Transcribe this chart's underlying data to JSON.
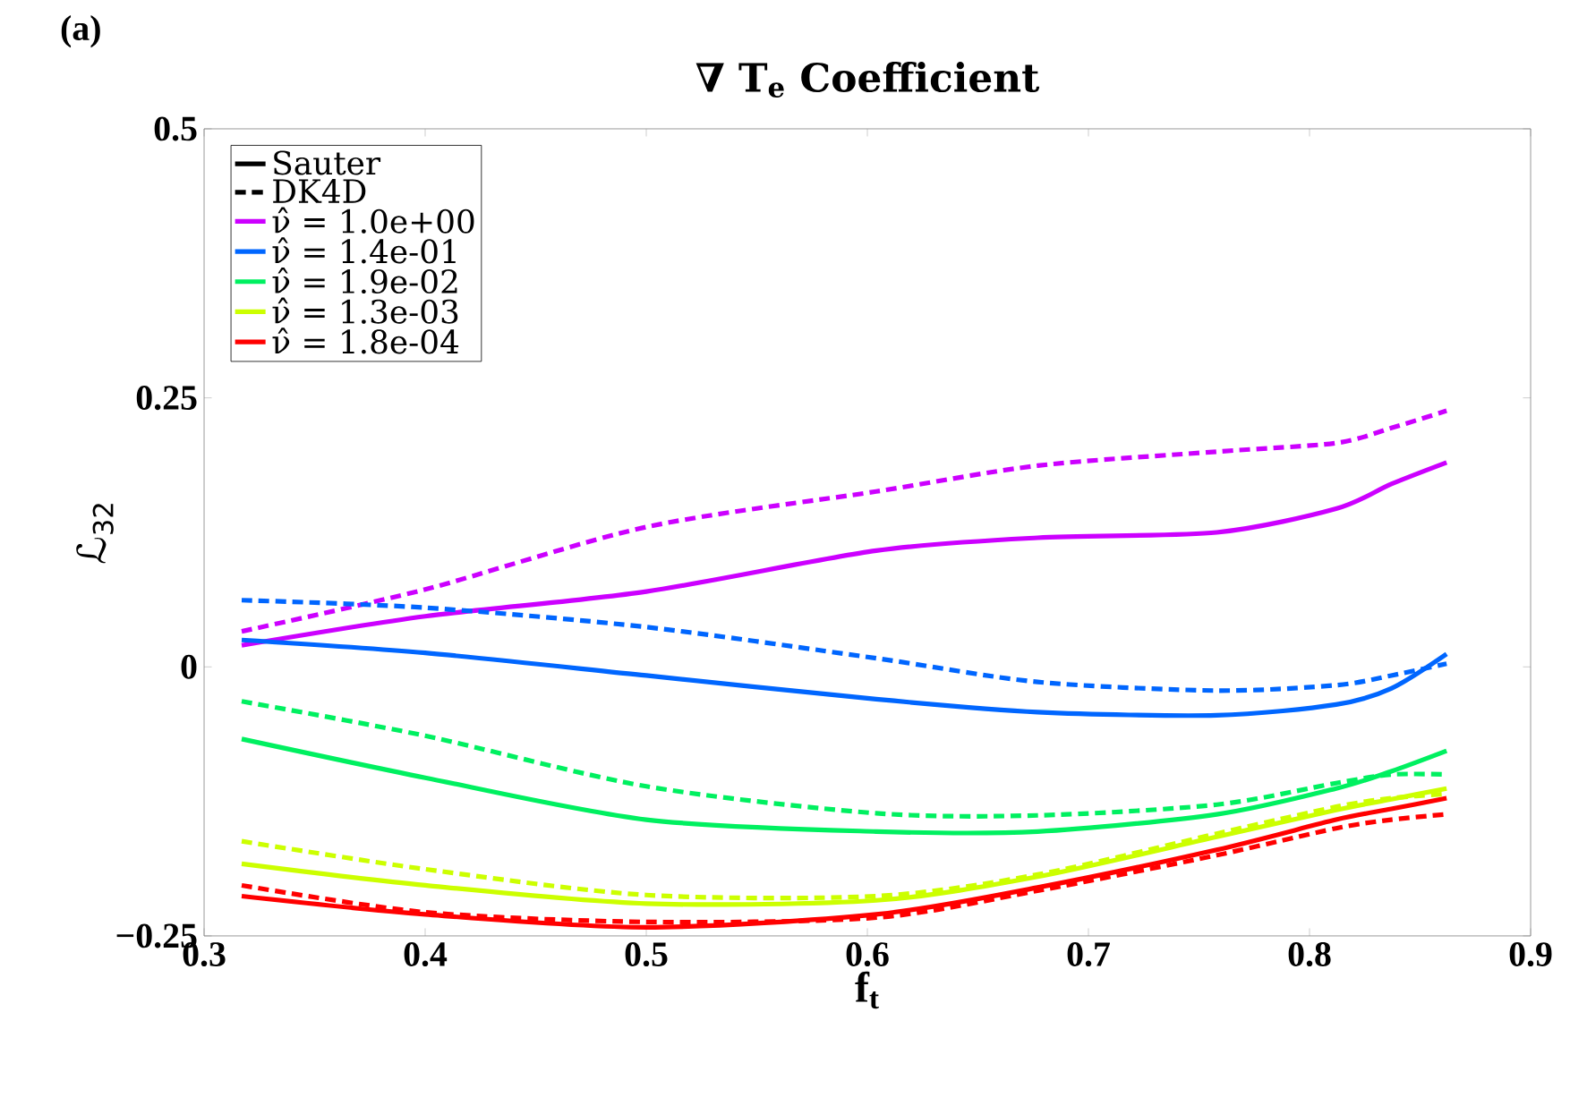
{
  "chart_data": {
    "type": "line",
    "title": "∇ T$_{e}$ Coefficient",
    "xlabel": "f$_{t}$",
    "ylabel": "ℒ$_{32}$",
    "annotations": [
      "(a)"
    ],
    "x": [
      0.317,
      0.4,
      0.5,
      0.604,
      0.677,
      0.758,
      0.812,
      0.837,
      0.862
    ],
    "xlim": [
      0.3,
      0.9
    ],
    "xticks": [
      0.3,
      0.4,
      0.5,
      0.6,
      0.7,
      0.8,
      0.9
    ],
    "ylim": [
      -0.25,
      0.5
    ],
    "yticks": [
      {
        "value": -0.25,
        "label": "−0.25"
      },
      0,
      0.25,
      0.5
    ],
    "legend": "top left",
    "grid": false,
    "marker": "none",
    "series": [
      {
        "name": "Sauter",
        "color": "#000000",
        "line_style": "solid",
        "values": [
          null,
          null,
          null,
          null,
          null,
          null,
          null,
          null,
          null
        ]
      },
      {
        "name": "DK4D",
        "color": "#000000",
        "line_style": "dashed",
        "values": [
          null,
          null,
          null,
          null,
          null,
          null,
          null,
          null,
          null
        ]
      },
      {
        "name": "ν̂ = 1.0e+00",
        "color": "#cc00ff",
        "line_style": "solid",
        "values": [
          0.02,
          0.047,
          0.07,
          0.108,
          0.12,
          0.125,
          0.147,
          0.17,
          0.19
        ]
      },
      {
        "name": "ν̂ = 1.4e-01",
        "color": "#0066ff",
        "line_style": "solid",
        "values": [
          0.025,
          0.013,
          -0.008,
          -0.03,
          -0.042,
          -0.045,
          -0.035,
          -0.02,
          0.012
        ]
      },
      {
        "name": "ν̂ = 1.9e-02",
        "color": "#00f060",
        "line_style": "solid",
        "values": [
          -0.067,
          -0.103,
          -0.142,
          -0.153,
          -0.153,
          -0.137,
          -0.113,
          -0.097,
          -0.078
        ]
      },
      {
        "name": "ν̂ = 1.3e-03",
        "color": "#ccff00",
        "line_style": "solid",
        "values": [
          -0.183,
          -0.203,
          -0.22,
          -0.217,
          -0.195,
          -0.158,
          -0.133,
          -0.123,
          -0.113
        ]
      },
      {
        "name": "ν̂ = 1.8e-04",
        "color": "#ff0000",
        "line_style": "solid",
        "values": [
          -0.213,
          -0.23,
          -0.242,
          -0.23,
          -0.205,
          -0.17,
          -0.142,
          -0.132,
          -0.122
        ]
      },
      {
        "color": "#cc00ff",
        "line_style": "dashed",
        "values": [
          0.033,
          0.072,
          0.13,
          0.163,
          0.187,
          0.2,
          0.208,
          0.222,
          0.238
        ]
      },
      {
        "color": "#0066ff",
        "line_style": "dashed",
        "values": [
          0.062,
          0.055,
          0.037,
          0.008,
          -0.014,
          -0.022,
          -0.017,
          -0.008,
          0.003
        ]
      },
      {
        "color": "#00f060",
        "line_style": "dashed",
        "values": [
          -0.032,
          -0.064,
          -0.111,
          -0.136,
          -0.138,
          -0.128,
          -0.108,
          -0.1,
          -0.1
        ]
      },
      {
        "color": "#ccff00",
        "line_style": "dashed",
        "values": [
          -0.162,
          -0.188,
          -0.212,
          -0.213,
          -0.193,
          -0.155,
          -0.13,
          -0.122,
          -0.118
        ]
      },
      {
        "color": "#ff0000",
        "line_style": "dashed",
        "values": [
          -0.203,
          -0.228,
          -0.237,
          -0.233,
          -0.208,
          -0.175,
          -0.15,
          -0.142,
          -0.137
        ]
      }
    ]
  }
}
